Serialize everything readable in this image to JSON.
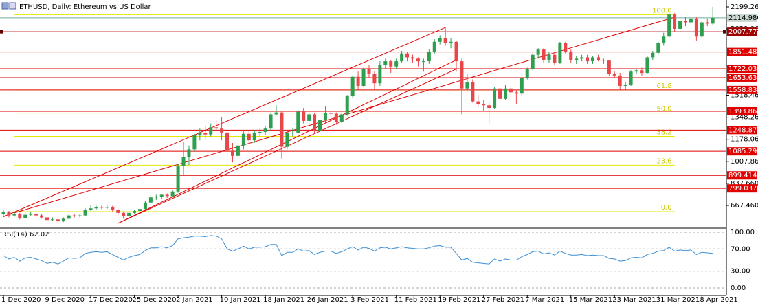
{
  "chart_data": {
    "type": "candlestick",
    "title": "ETHUSD, Daily:  Ethereum vs US Dollar",
    "categories": [
      "1 Dec 2020",
      null,
      null,
      null,
      null,
      null,
      null,
      null,
      "9 Dec 2020",
      null,
      null,
      null,
      null,
      null,
      null,
      null,
      "17 Dec 2020",
      null,
      null,
      null,
      null,
      null,
      null,
      null,
      "25 Dec 2020",
      null,
      null,
      null,
      null,
      null,
      null,
      null,
      "2 Jan 2021",
      null,
      null,
      null,
      null,
      null,
      null,
      null,
      "10 Jan 2021",
      null,
      null,
      null,
      null,
      null,
      null,
      null,
      "18 Jan 2021",
      null,
      null,
      null,
      null,
      null,
      null,
      null,
      "26 Jan 2021",
      null,
      null,
      null,
      null,
      null,
      null,
      null,
      "3 Feb 2021",
      null,
      null,
      null,
      null,
      null,
      null,
      null,
      "11 Feb 2021",
      null,
      null,
      null,
      null,
      null,
      null,
      null,
      "19 Feb 2021",
      null,
      null,
      null,
      null,
      null,
      null,
      null,
      "27 Feb 2021",
      null,
      null,
      null,
      null,
      null,
      null,
      null,
      "7 Mar 2021",
      null,
      null,
      null,
      null,
      null,
      null,
      null,
      "15 Mar 2021",
      null,
      null,
      null,
      null,
      null,
      null,
      null,
      "23 Mar 2021",
      null,
      null,
      null,
      null,
      null,
      null,
      null,
      "31 Mar 2021",
      null,
      null,
      null,
      null,
      null,
      null,
      null,
      "8 Apr 2021",
      null,
      null
    ],
    "open": [
      600,
      615,
      590,
      600,
      570,
      595,
      600,
      590,
      575,
      555,
      560,
      545,
      565,
      590,
      585,
      590,
      635,
      645,
      655,
      650,
      655,
      635,
      610,
      585,
      610,
      625,
      640,
      690,
      730,
      735,
      750,
      740,
      775,
      975,
      1040,
      1100,
      1210,
      1225,
      1215,
      1270,
      1260,
      1230,
      1090,
      1050,
      1130,
      1220,
      1170,
      1230,
      1235,
      1260,
      1370,
      1385,
      1120,
      1230,
      1230,
      1390,
      1320,
      1370,
      1240,
      1330,
      1380,
      1375,
      1310,
      1370,
      1510,
      1660,
      1590,
      1720,
      1680,
      1610,
      1750,
      1780,
      1740,
      1780,
      1840,
      1810,
      1800,
      1780,
      1780,
      1850,
      1930,
      1960,
      1920,
      1930,
      1780,
      1570,
      1620,
      1470,
      1450,
      1440,
      1420,
      1570,
      1490,
      1570,
      1540,
      1530,
      1650,
      1720,
      1830,
      1870,
      1790,
      1830,
      1770,
      1920,
      1855,
      1790,
      1800,
      1810,
      1780,
      1810,
      1790,
      1785,
      1680,
      1670,
      1590,
      1600,
      1700,
      1710,
      1690,
      1810,
      1845,
      1920,
      1970,
      2140,
      2030,
      2090,
      2080,
      2110,
      1970,
      2080,
      2070
    ],
    "high": [
      630,
      625,
      615,
      610,
      605,
      615,
      605,
      600,
      585,
      575,
      570,
      575,
      600,
      600,
      600,
      645,
      670,
      665,
      665,
      670,
      665,
      640,
      620,
      620,
      635,
      650,
      700,
      745,
      750,
      755,
      760,
      785,
      990,
      1160,
      1130,
      1220,
      1260,
      1280,
      1300,
      1330,
      1350,
      1250,
      1150,
      1150,
      1250,
      1240,
      1250,
      1260,
      1280,
      1380,
      1440,
      1390,
      1250,
      1260,
      1400,
      1420,
      1380,
      1380,
      1340,
      1430,
      1400,
      1385,
      1380,
      1520,
      1670,
      1700,
      1730,
      1750,
      1700,
      1780,
      1800,
      1790,
      1800,
      1860,
      1850,
      1830,
      1810,
      1800,
      1870,
      1950,
      1980,
      2040,
      1960,
      1940,
      1800,
      1680,
      1640,
      1520,
      1480,
      1470,
      1580,
      1580,
      1600,
      1590,
      1560,
      1660,
      1730,
      1840,
      1880,
      1880,
      1850,
      1840,
      1930,
      1930,
      1870,
      1820,
      1830,
      1830,
      1820,
      1830,
      1800,
      1790,
      1700,
      1690,
      1620,
      1710,
      1720,
      1730,
      1820,
      1860,
      1930,
      2000,
      2150,
      2150,
      2110,
      2120,
      2140,
      2120,
      2090,
      2110,
      2200
    ],
    "low": [
      585,
      575,
      580,
      560,
      565,
      585,
      575,
      565,
      540,
      545,
      530,
      540,
      560,
      575,
      575,
      585,
      625,
      635,
      640,
      640,
      620,
      590,
      565,
      575,
      600,
      615,
      635,
      680,
      710,
      720,
      725,
      730,
      765,
      900,
      980,
      1080,
      1170,
      1180,
      1200,
      1240,
      1170,
      920,
      1000,
      1030,
      1100,
      1140,
      1150,
      1200,
      1210,
      1240,
      1360,
      1030,
      1100,
      1200,
      1220,
      1300,
      1290,
      1220,
      1220,
      1300,
      1350,
      1290,
      1300,
      1360,
      1500,
      1560,
      1580,
      1650,
      1560,
      1590,
      1720,
      1690,
      1720,
      1770,
      1780,
      1770,
      1740,
      1700,
      1760,
      1840,
      1910,
      1900,
      1880,
      1700,
      1370,
      1550,
      1460,
      1430,
      1400,
      1300,
      1410,
      1470,
      1480,
      1500,
      1450,
      1510,
      1640,
      1710,
      1800,
      1770,
      1770,
      1750,
      1760,
      1840,
      1770,
      1760,
      1780,
      1760,
      1760,
      1780,
      1760,
      1670,
      1650,
      1560,
      1560,
      1590,
      1680,
      1670,
      1680,
      1790,
      1830,
      1900,
      1960,
      2010,
      2000,
      2050,
      2060,
      1940,
      1960,
      2050,
      2060
    ],
    "close": [
      615,
      590,
      600,
      570,
      595,
      600,
      590,
      575,
      555,
      560,
      545,
      565,
      590,
      585,
      590,
      635,
      645,
      655,
      650,
      655,
      635,
      610,
      585,
      610,
      625,
      640,
      690,
      730,
      735,
      750,
      740,
      775,
      975,
      1040,
      1100,
      1210,
      1225,
      1215,
      1270,
      1260,
      1230,
      1090,
      1050,
      1130,
      1220,
      1170,
      1230,
      1235,
      1260,
      1370,
      1385,
      1120,
      1230,
      1230,
      1390,
      1320,
      1370,
      1240,
      1330,
      1380,
      1375,
      1310,
      1370,
      1510,
      1660,
      1590,
      1720,
      1680,
      1610,
      1750,
      1780,
      1740,
      1780,
      1840,
      1810,
      1800,
      1780,
      1780,
      1850,
      1930,
      1960,
      1920,
      1930,
      1780,
      1570,
      1620,
      1470,
      1450,
      1440,
      1420,
      1570,
      1490,
      1570,
      1540,
      1530,
      1650,
      1720,
      1830,
      1870,
      1790,
      1830,
      1770,
      1920,
      1855,
      1790,
      1800,
      1810,
      1780,
      1810,
      1790,
      1785,
      1680,
      1670,
      1590,
      1600,
      1700,
      1710,
      1690,
      1810,
      1845,
      1920,
      1970,
      2140,
      2030,
      2090,
      2080,
      2110,
      1970,
      2080,
      2070,
      2115
    ],
    "up_color": "#2e9e4f",
    "down_color": "#e8474a",
    "ylim": [
      503.2,
      2252.3
    ],
    "yticks": [
      {
        "value": 2199.26,
        "label": "2199.260"
      },
      {
        "value": 2029.06,
        "label": "2029.060"
      },
      {
        "value": 1518.46,
        "label": "1518.460"
      },
      {
        "value": 1348.26,
        "label": "1348.260"
      },
      {
        "value": 1178.06,
        "label": "1178.060"
      },
      {
        "value": 1007.86,
        "label": "1007.860"
      },
      {
        "value": 837.66,
        "label": "837.660"
      },
      {
        "value": 667.46,
        "label": "667.460"
      }
    ],
    "current_price": {
      "value": 2114.98,
      "label": "2114.980"
    },
    "current_price_color": "#6fae9e",
    "levels": [
      2007.771,
      1851.484,
      1722.036,
      1653.631,
      1558.839,
      {
        "value": 1393.86,
        "label": "1393.860"
      },
      1248.872,
      1085.296,
      899.414,
      799.037
    ],
    "level_color": "#e00000",
    "fibonacci": {
      "from": 2,
      "to": 123,
      "color": "#e6e600",
      "levels": [
        {
          "label": "100.0",
          "value": 2139
        },
        {
          "label": "61.8",
          "value": 1558
        },
        {
          "label": "50.0",
          "value": 1380
        },
        {
          "label": "38.2",
          "value": 1200
        },
        {
          "label": "23.6",
          "value": 978
        },
        {
          "label": "0.0",
          "value": 620
        }
      ]
    },
    "trendlines": [
      {
        "from": [
          0,
          580
        ],
        "to": [
          81,
          2040
        ]
      },
      {
        "from": [
          21,
          530
        ],
        "to": [
          83,
          1790
        ]
      },
      {
        "from": [
          21,
          530
        ],
        "to": [
          83,
          1720
        ]
      },
      {
        "from": [
          2,
          610
        ],
        "to": [
          123,
          2120
        ]
      }
    ],
    "trendline_color": "#e00000",
    "rsi": {
      "title": "RSI(14) 62.02",
      "color": "#3d8fd6",
      "ylim": [
        -13.6,
        106.2
      ],
      "yticks": [
        {
          "value": 100,
          "label": "100.00"
        },
        {
          "value": 70,
          "label": "70.00"
        },
        {
          "value": 30,
          "label": "30.00"
        },
        {
          "value": 0,
          "label": "0.00"
        }
      ],
      "values": [
        58,
        52,
        55,
        48,
        54,
        55,
        52,
        49,
        44,
        46,
        43,
        48,
        54,
        53,
        54,
        62,
        64,
        65,
        64,
        65,
        60,
        55,
        50,
        55,
        58,
        60,
        67,
        72,
        72,
        74,
        72,
        76,
        88,
        90,
        91,
        93,
        93,
        92,
        94,
        93,
        88,
        70,
        66,
        70,
        75,
        70,
        73,
        73,
        74,
        78,
        78,
        58,
        64,
        64,
        70,
        66,
        67,
        60,
        64,
        66,
        66,
        62,
        65,
        70,
        74,
        68,
        73,
        71,
        66,
        72,
        73,
        70,
        72,
        74,
        72,
        71,
        70,
        70,
        72,
        75,
        76,
        73,
        73,
        62,
        50,
        53,
        46,
        45,
        44,
        43,
        52,
        48,
        52,
        50,
        50,
        56,
        60,
        65,
        66,
        61,
        63,
        59,
        66,
        62,
        59,
        59,
        60,
        58,
        59,
        58,
        58,
        53,
        52,
        48,
        49,
        54,
        55,
        54,
        60,
        62,
        66,
        67,
        73,
        66,
        68,
        67,
        68,
        60,
        64,
        63,
        62.02
      ]
    }
  }
}
